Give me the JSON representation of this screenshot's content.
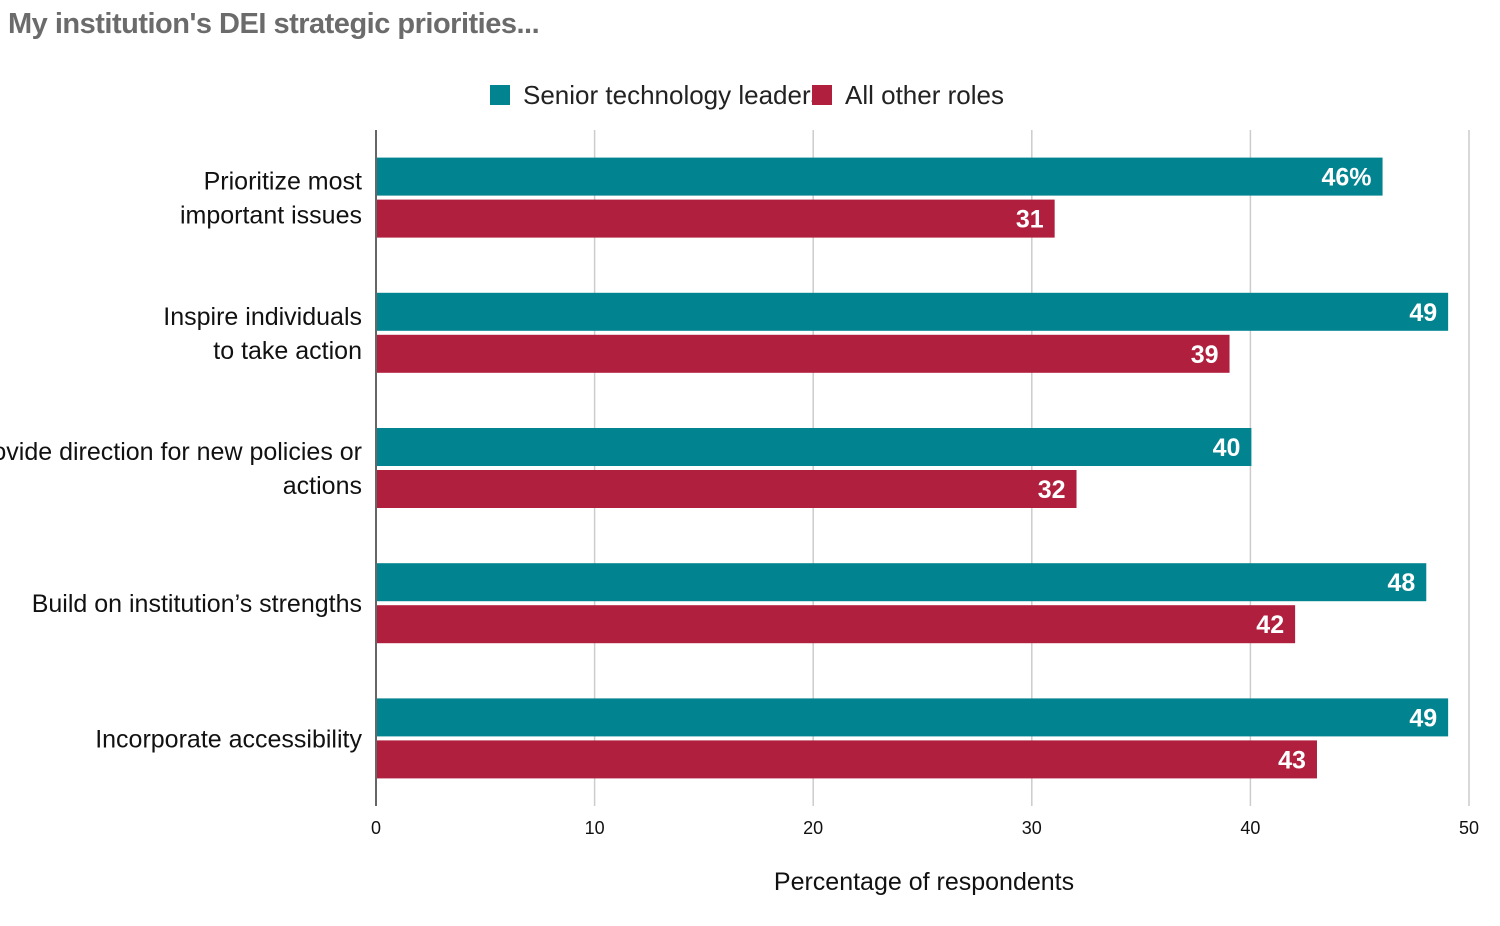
{
  "chart_data": {
    "type": "bar",
    "orientation": "horizontal",
    "title": "My institution's DEI strategic priorities...",
    "categories": [
      [
        "Prioritize most",
        "important issues"
      ],
      [
        "Inspire individuals",
        "to take action"
      ],
      [
        "Provide direction for new policies or",
        "actions"
      ],
      [
        "Build on institution’s strengths"
      ],
      [
        "Incorporate accessibility"
      ]
    ],
    "series": [
      {
        "name": "Senior technology leaders",
        "color": "#028390",
        "values": [
          46,
          49,
          40,
          48,
          49
        ],
        "labels": [
          "46%",
          "49",
          "40",
          "48",
          "49"
        ]
      },
      {
        "name": "All other roles",
        "color": "#b01f3d",
        "values": [
          31,
          39,
          32,
          42,
          43
        ],
        "labels": [
          "31",
          "39",
          "32",
          "42",
          "43"
        ]
      }
    ],
    "xlabel": "Percentage of respondents",
    "ylabel": "",
    "xlim": [
      0,
      50
    ],
    "xticks": [
      0,
      10,
      20,
      30,
      40,
      50
    ],
    "grid": true,
    "legend_position": "top-center"
  }
}
